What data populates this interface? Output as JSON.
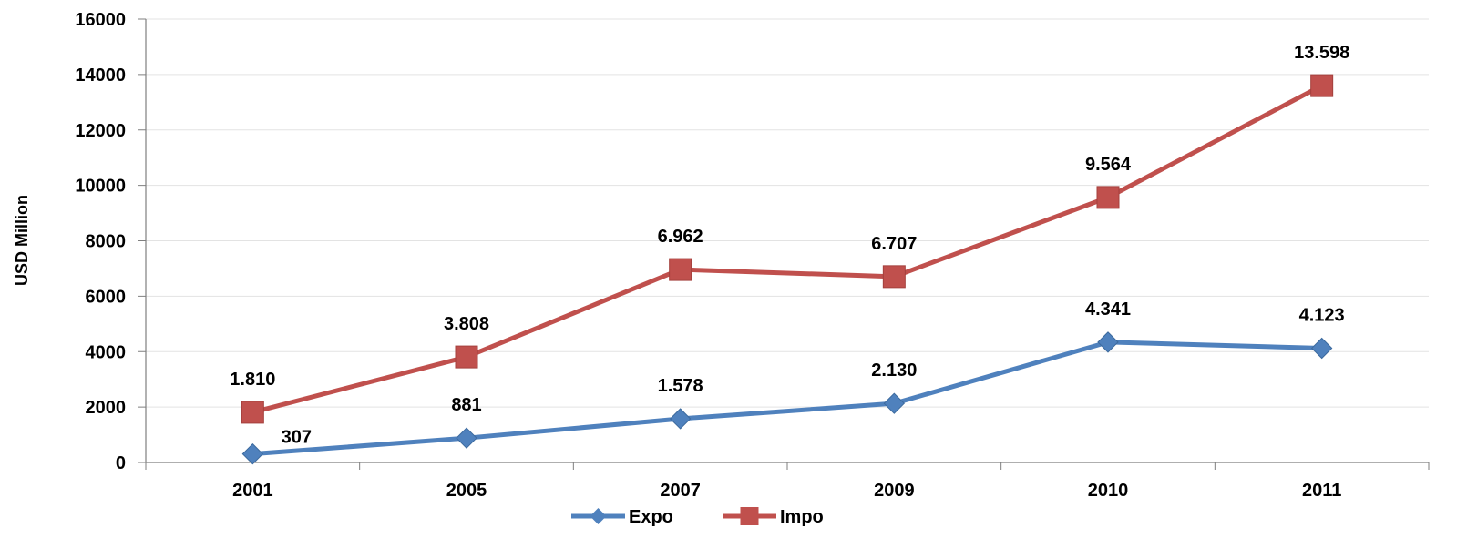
{
  "chart_data": {
    "type": "line",
    "title": "",
    "xlabel": "",
    "ylabel": "USD Million",
    "categories": [
      "2001",
      "2005",
      "2007",
      "2009",
      "2010",
      "2011"
    ],
    "ylim": [
      0,
      16000
    ],
    "yticks": [
      0,
      2000,
      4000,
      6000,
      8000,
      10000,
      12000,
      14000,
      16000
    ],
    "ytick_labels": [
      "0",
      "2000",
      "4000",
      "6000",
      "8000",
      "10000",
      "12000",
      "14000",
      "16000"
    ],
    "grid": true,
    "legend": "bottom-center",
    "series": [
      {
        "name": "Expo",
        "color": "#4F81BD",
        "marker": "diamond",
        "values": [
          307,
          881,
          1578,
          2130,
          4341,
          4123
        ],
        "labels": [
          "307",
          "881",
          "1.578",
          "2.130",
          "4.341",
          "4.123"
        ]
      },
      {
        "name": "Impo",
        "color": "#C0504D",
        "marker": "square",
        "values": [
          1810,
          3808,
          6962,
          6707,
          9564,
          13598
        ],
        "labels": [
          "1.810",
          "3.808",
          "6.962",
          "6.707",
          "9.564",
          "13.598"
        ]
      }
    ]
  }
}
